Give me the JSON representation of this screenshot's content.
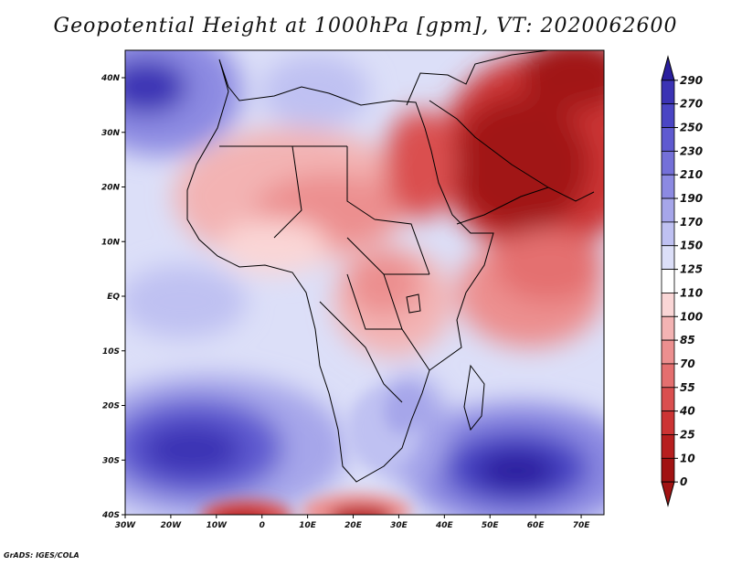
{
  "title": "Geopotential Height at 1000hPa [gpm], VT: 2020062600",
  "credit": "GrADS: IGES/COLA",
  "lon_labels": [
    "30W",
    "20W",
    "10W",
    "0",
    "10E",
    "20E",
    "30E",
    "40E",
    "50E",
    "60E",
    "70E"
  ],
  "lat_labels": [
    "40N",
    "30N",
    "20N",
    "10N",
    "EQ",
    "10S",
    "20S",
    "30S",
    "40S"
  ],
  "colorbar": {
    "labels": [
      "290",
      "270",
      "250",
      "230",
      "210",
      "190",
      "170",
      "150",
      "125",
      "110",
      "100",
      "85",
      "70",
      "55",
      "40",
      "25",
      "10",
      "0"
    ],
    "colors": [
      "#2a1f9e",
      "#3b33b4",
      "#4a45c4",
      "#5f5ad0",
      "#7470d8",
      "#8c8ae2",
      "#a6a6ea",
      "#bfc1f2",
      "#dcdff8",
      "#ffffff",
      "#fad6d6",
      "#f3b3b3",
      "#ec8f8f",
      "#e46f6f",
      "#da4f4f",
      "#cc3434",
      "#b71f1f",
      "#a11313"
    ]
  }
}
